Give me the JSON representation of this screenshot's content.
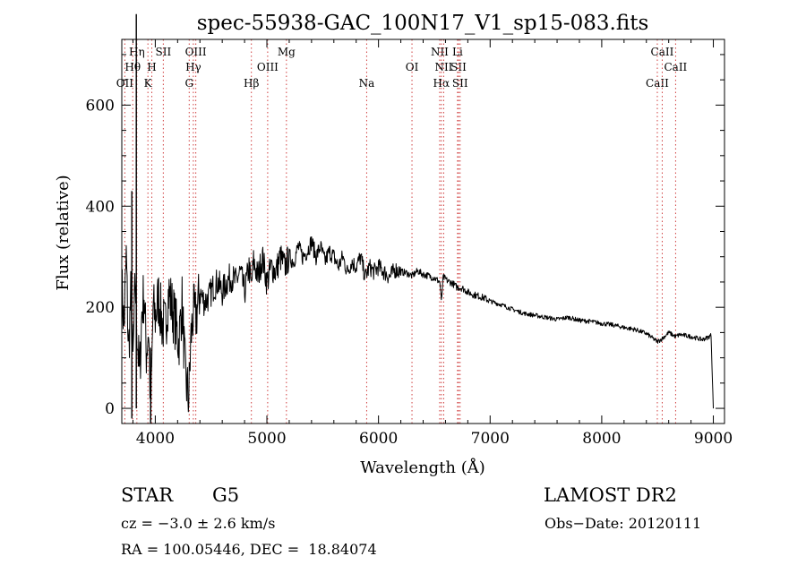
{
  "chart_data": {
    "type": "line",
    "title": "spec-55938-GAC_100N17_V1_sp15-083.fits",
    "xlabel": "Wavelength (Å)",
    "ylabel": "Flux (relative)",
    "xlim": [
      3700,
      9100
    ],
    "ylim": [
      -30,
      730
    ],
    "x_ticks": [
      4000,
      5000,
      6000,
      7000,
      8000,
      9000
    ],
    "y_ticks": [
      0,
      200,
      400,
      600
    ],
    "grid": false,
    "series": [
      {
        "x": [
          3700,
          3720,
          3740,
          3760,
          3780,
          3800,
          3820,
          3840,
          3860,
          3880,
          3900,
          3920,
          3940,
          3960,
          3980,
          4000,
          4030,
          4060,
          4090,
          4120,
          4150,
          4180,
          4210,
          4240,
          4270,
          4300,
          4320,
          4340,
          4360,
          4380,
          4400,
          4440,
          4480,
          4520,
          4560,
          4600,
          4640,
          4680,
          4720,
          4760,
          4800,
          4840,
          4860,
          4880,
          4920,
          4960,
          5000,
          5040,
          5080,
          5120,
          5160,
          5200,
          5240,
          5280,
          5320,
          5360,
          5400,
          5440,
          5480,
          5520,
          5560,
          5600,
          5640,
          5680,
          5720,
          5760,
          5800,
          5840,
          5880,
          5920,
          5960,
          6000,
          6050,
          6100,
          6150,
          6200,
          6250,
          6300,
          6350,
          6400,
          6450,
          6500,
          6550,
          6563,
          6580,
          6620,
          6660,
          6700,
          6750,
          6800,
          6850,
          6900,
          6950,
          7000,
          7100,
          7200,
          7300,
          7400,
          7500,
          7600,
          7700,
          7800,
          7900,
          8000,
          8100,
          8200,
          8300,
          8400,
          8498,
          8542,
          8600,
          8662,
          8700,
          8800,
          8900,
          8950,
          8980,
          9000
        ],
        "y": [
          240,
          160,
          300,
          110,
          220,
          90,
          250,
          140,
          60,
          190,
          230,
          110,
          160,
          -20,
          200,
          180,
          220,
          170,
          160,
          230,
          200,
          170,
          130,
          210,
          60,
          20,
          140,
          190,
          180,
          200,
          230,
          210,
          220,
          240,
          250,
          230,
          250,
          260,
          250,
          270,
          230,
          280,
          240,
          290,
          260,
          300,
          250,
          280,
          270,
          300,
          280,
          300,
          290,
          320,
          300,
          310,
          330,
          300,
          320,
          290,
          310,
          300,
          280,
          300,
          270,
          290,
          280,
          300,
          260,
          280,
          270,
          280,
          270,
          260,
          275,
          270,
          268,
          262,
          272,
          265,
          262,
          258,
          250,
          210,
          260,
          252,
          248,
          240,
          238,
          230,
          225,
          222,
          218,
          212,
          205,
          196,
          188,
          184,
          180,
          176,
          180,
          174,
          172,
          168,
          165,
          160,
          156,
          148,
          132,
          138,
          150,
          142,
          146,
          142,
          136,
          140,
          145,
          0
        ]
      }
    ],
    "lines": [
      {
        "label": "OII",
        "wavelength": 3727,
        "tier": 3
      },
      {
        "label": "Hθ",
        "wavelength": 3798,
        "tier": 2
      },
      {
        "label": "Hη",
        "wavelength": 3835,
        "tier": 1
      },
      {
        "label": "K",
        "wavelength": 3934,
        "tier": 3
      },
      {
        "label": "H",
        "wavelength": 3969,
        "tier": 2
      },
      {
        "label": "SII",
        "wavelength": 4072,
        "tier": 1
      },
      {
        "label": "G",
        "wavelength": 4304,
        "tier": 3
      },
      {
        "label": "Hγ",
        "wavelength": 4341,
        "tier": 2
      },
      {
        "label": "OIII",
        "wavelength": 4363,
        "tier": 1
      },
      {
        "label": "Hβ",
        "wavelength": 4861,
        "tier": 3
      },
      {
        "label": "OIII",
        "wavelength": 5007,
        "tier": 2
      },
      {
        "label": "Mg",
        "wavelength": 5175,
        "tier": 1
      },
      {
        "label": "Na",
        "wavelength": 5894,
        "tier": 3
      },
      {
        "label": "OI",
        "wavelength": 6300,
        "tier": 2
      },
      {
        "label": "NII",
        "wavelength": 6548,
        "tier": 1
      },
      {
        "label": "Hα",
        "wavelength": 6563,
        "tier": 3
      },
      {
        "label": "NII",
        "wavelength": 6584,
        "tier": 2
      },
      {
        "label": "Li",
        "wavelength": 6708,
        "tier": 1
      },
      {
        "label": "SII",
        "wavelength": 6717,
        "tier": 2
      },
      {
        "label": "SII",
        "wavelength": 6731,
        "tier": 3
      },
      {
        "label": "CaII",
        "wavelength": 8498,
        "tier": 3
      },
      {
        "label": "CaII",
        "wavelength": 8542,
        "tier": 1
      },
      {
        "label": "CaII",
        "wavelength": 8662,
        "tier": 2
      }
    ],
    "colors": {
      "line_markers": "#d04040",
      "spectrum": "#000000"
    }
  },
  "info": {
    "class": "STAR",
    "subclass": "G5",
    "survey": "LAMOST DR2",
    "cz": "cz = −3.0 ± 2.6 km/s",
    "obs_date": "Obs−Date: 20120111",
    "coords": "RA = 100.05446, DEC =  18.84074"
  }
}
